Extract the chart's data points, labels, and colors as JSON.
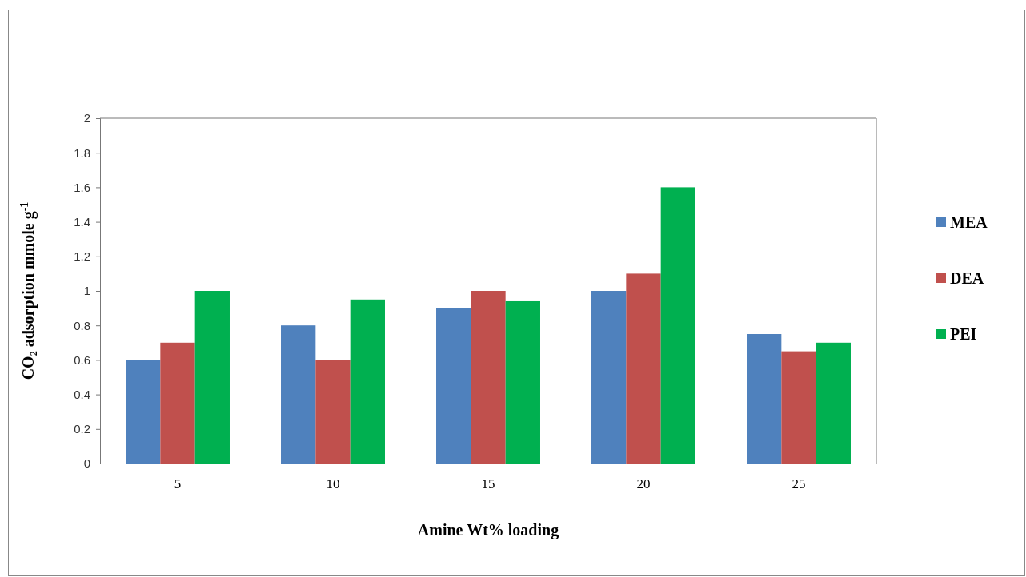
{
  "chart_data": {
    "type": "bar",
    "xlabel": "Amine Wt% loading",
    "ylabel": "CO₂ adsorption mmole g$^{-1}$",
    "categories": [
      "5",
      "10",
      "15",
      "20",
      "25"
    ],
    "series": [
      {
        "name": "MEA",
        "color": "#4f81bd",
        "values": [
          0.6,
          0.8,
          0.9,
          1.0,
          0.75
        ]
      },
      {
        "name": "DEA",
        "color": "#c0504d",
        "values": [
          0.7,
          0.6,
          1.0,
          1.1,
          0.65
        ]
      },
      {
        "name": "PEI",
        "color": "#00b050",
        "values": [
          1.0,
          0.95,
          0.94,
          1.6,
          0.7
        ]
      }
    ],
    "ylim": [
      0,
      2
    ],
    "yticks": [
      0,
      0.2,
      0.4,
      0.6,
      0.8,
      1,
      1.2,
      1.4,
      1.6,
      1.8,
      2
    ],
    "grid": false,
    "legend": "right"
  }
}
